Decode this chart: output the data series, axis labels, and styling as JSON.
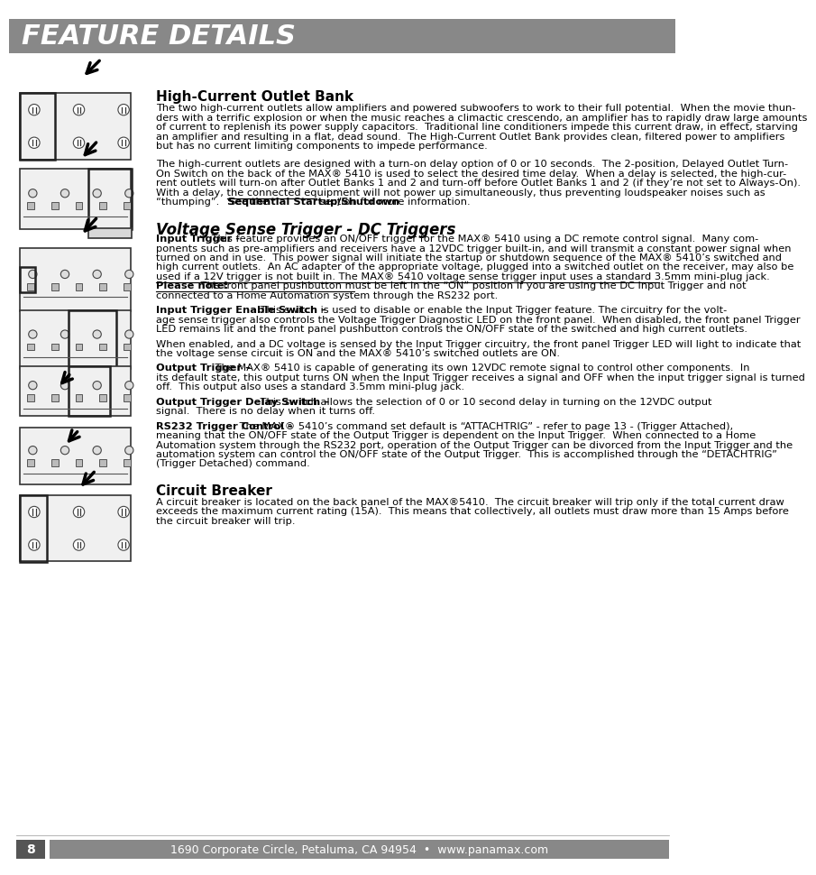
{
  "bg_color": "#ffffff",
  "header_bg": "#888888",
  "header_text": "FEATURE DETAILS",
  "header_text_color": "#ffffff",
  "footer_bg": "#888888",
  "footer_text": "1690 Corporate Circle, Petaluma, CA 94954  •  www.panamax.com",
  "footer_text_color": "#ffffff",
  "footer_page": "8",
  "footer_page_bg": "#555555",
  "section1_title": "High-Current Outlet Bank",
  "section1_body1": "The two high-current outlets allow amplifiers and powered subwoofers to work to their full potential.  When the movie thun-\nders with a terrific explosion or when the music reaches a climactic crescendo, an amplifier has to rapidly draw large amounts\nof current to replenish its power supply capacitors.  Traditional line conditioners impede this current draw, in effect, starving\nan amplifier and resulting in a flat, dead sound.  The High-Current Outlet Bank provides clean, filtered power to amplifiers\nbut has no current limiting components to impede performance.",
  "section1_body2": "The high-current outlets are designed with a turn-on delay option of 0 or 10 seconds.  The 2-position, Delayed Outlet Turn-\nOn Switch on the back of the MAX® 5410 is used to select the desired time delay.  When a delay is selected, the high-cur-\nrent outlets will turn-on after Outlet Banks 1 and 2 and turn-off before Outlet Banks 1 and 2 (if they’re not set to Always-On).\nWith a delay, the connected equipment will not power up simultaneously, thus preventing loudspeaker noises such as\n“thumping”.   See the Sequential Startup/Shutdown section for more information.",
  "section1_body2_underline": "Sequential Startup/Shutdown",
  "section2_title": "Voltage Sense Trigger - DC Triggers",
  "section2_input_trigger_label": "Input Trigger -",
  "section2_input_trigger_body": " This feature provides an ON/OFF trigger for the MAX® 5410 using a DC remote control signal.  Many com-\nponents such as pre-amplifiers and receivers have a 12VDC trigger built-in, and will transmit a constant power signal when\nturned on and in use.  This power signal will initiate the startup or shutdown sequence of the MAX® 5410’s switched and\nhigh current outlets.  An AC adapter of the appropriate voltage, plugged into a switched outlet on the receiver, may also be\nused if a 12V trigger is not built in. The MAX® 5410 voltage sense trigger input uses a standard 3.5mm mini-plug jack.\nPlease note: The front panel pushbutton must be left in the “ON” position if you are using the DC Input Trigger and not\nconnected to a Home Automation system through the RS232 port.",
  "section2_please_note_label": "Please note:",
  "section2_input_trigger_enable_label": "Input Trigger Enable Switch –",
  "section2_input_trigger_enable_body": " This switch is used to disable or enable the Input Trigger feature. The circuitry for the volt-\nage sense trigger also controls the Voltage Trigger Diagnostic LED on the front panel.  When disabled, the front panel Trigger\nLED remains lit and the front panel pushbutton controls the ON/OFF state of the switched and high current outlets.",
  "section2_when_enabled": "When enabled, and a DC voltage is sensed by the Input Trigger circuitry, the front panel Trigger LED will light to indicate that\nthe voltage sense circuit is ON and the MAX® 5410’s switched outlets are ON.",
  "section2_output_trigger_label": "Output Trigger –",
  "section2_output_trigger_body": " The MAX® 5410 is capable of generating its own 12VDC remote signal to control other components.  In\nits default state, this output turns ON when the Input Trigger receives a signal and OFF when the input trigger signal is turned\noff.  This output also uses a standard 3.5mm mini-plug jack.",
  "section2_output_delay_label": "Output Trigger Delay Switch –",
  "section2_output_delay_body": " This switch allows the selection of 0 or 10 second delay in turning on the 12VDC output\nsignal.  There is no delay when it turns off.",
  "section2_rs232_label": "RS232 Trigger Control –",
  "section2_rs232_body": " The MAX® 5410’s command set default is “ATTACHTRIG” - refer to page 13 - (Trigger Attached),\nmeaning that the ON/OFF state of the Output Trigger is dependent on the Input Trigger.  When connected to a Home\nAutomation system through the RS232 port, operation of the Output Trigger can be divorced from the Input Trigger and the\nautomation system can control the ON/OFF state of the Output Trigger.  This is accomplished through the “DETACHTRIG”\n(Trigger Detached) command.",
  "section3_title": "Circuit Breaker",
  "section3_body": "A circuit breaker is located on the back panel of the MAX®5410.  The circuit breaker will trip only if the total current draw\nexceeds the maximum current rating (15A).  This means that collectively, all outlets must draw more than 15 Amps before\nthe circuit breaker will trip."
}
